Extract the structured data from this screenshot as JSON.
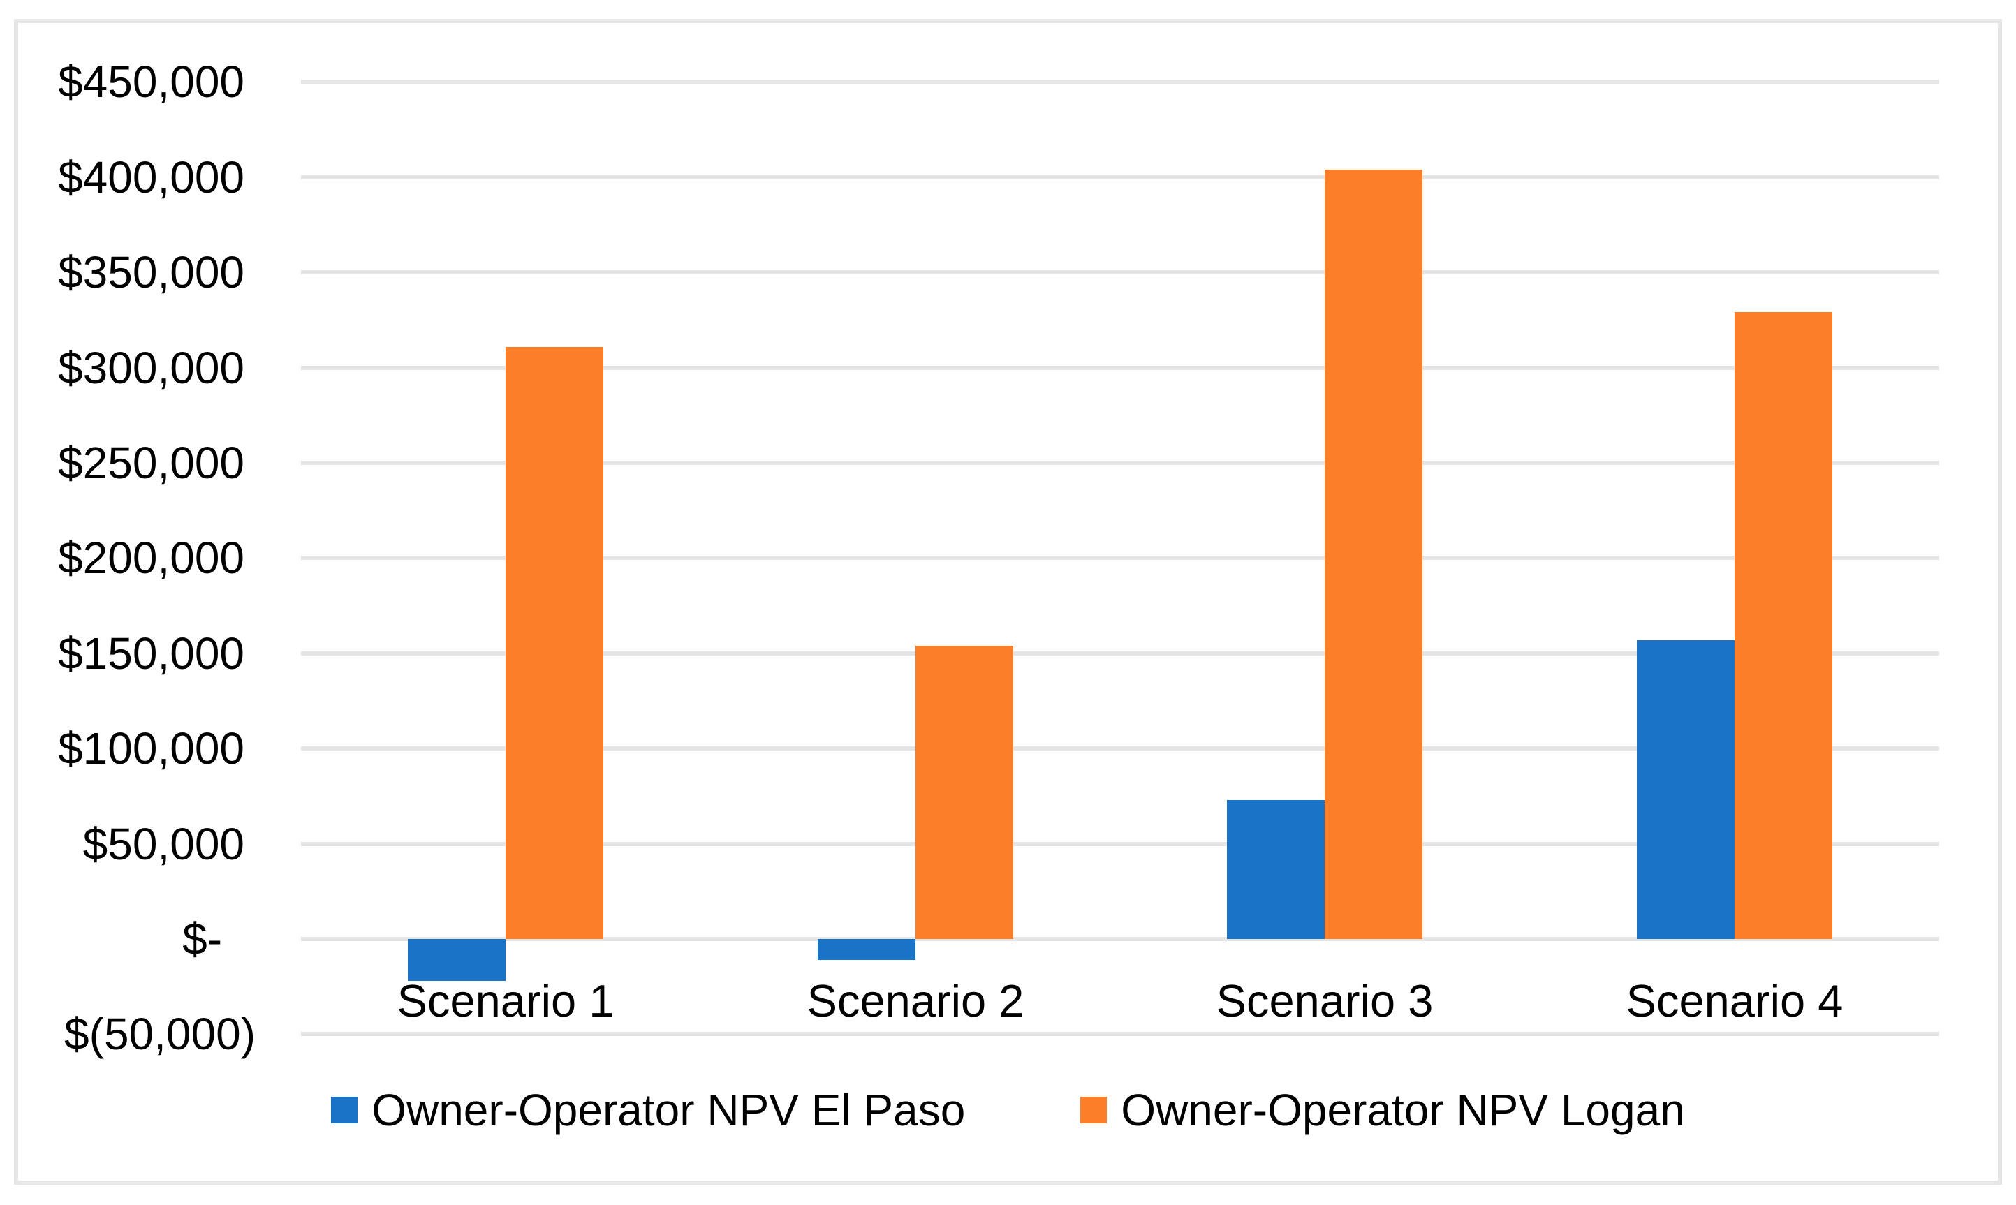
{
  "chart_data": {
    "type": "bar",
    "title": "",
    "xlabel": "",
    "ylabel": "",
    "categories": [
      "Scenario 1",
      "Scenario 2",
      "Scenario 3",
      "Scenario 4"
    ],
    "series": [
      {
        "name": "Owner-Operator NPV El Paso",
        "color": "#1A73C7",
        "values": [
          -22000,
          -11000,
          73000,
          157000
        ]
      },
      {
        "name": "Owner-Operator NPV Logan",
        "color": "#FD7E28",
        "values": [
          311000,
          154000,
          404000,
          329000
        ]
      }
    ],
    "ylim": [
      -50000,
      450000
    ],
    "ytick_step": 50000,
    "ytick_labels": [
      "$450,000",
      "$400,000",
      "$350,000",
      "$300,000",
      "$250,000",
      "$200,000",
      "$150,000",
      "$100,000",
      "$50,000",
      "$-",
      "$(50,000)"
    ],
    "number_format": "accounting",
    "grid": true,
    "gridline_color": "#E5E5E5",
    "legend_position": "bottom"
  }
}
